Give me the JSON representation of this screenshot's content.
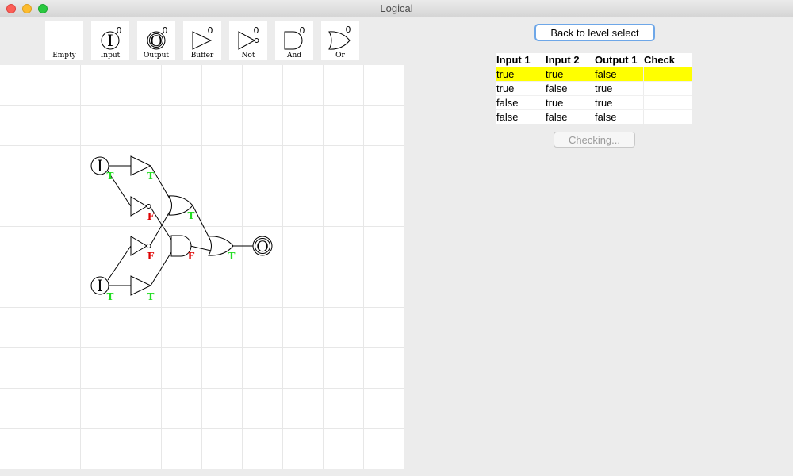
{
  "window": {
    "title": "Logical"
  },
  "palette": {
    "items": [
      {
        "name": "empty",
        "label": "Empty",
        "count": ""
      },
      {
        "name": "input",
        "label": "Input",
        "count": "0"
      },
      {
        "name": "output",
        "label": "Output",
        "count": "0"
      },
      {
        "name": "buffer",
        "label": "Buffer",
        "count": "0"
      },
      {
        "name": "not",
        "label": "Not",
        "count": "0"
      },
      {
        "name": "and",
        "label": "And",
        "count": "0"
      },
      {
        "name": "or",
        "label": "Or",
        "count": "0"
      }
    ]
  },
  "circuit": {
    "input_symbol": "I",
    "output_symbol": "O",
    "signals": {
      "input1": "T",
      "buf1": "T",
      "not1": "F",
      "or1": "T",
      "not2": "F",
      "and1": "F",
      "or2": "T",
      "input2": "T",
      "buf2": "T"
    },
    "colors": {
      "true": "#22dd22",
      "false": "#dd0000"
    }
  },
  "sidebar": {
    "back_button": "Back to level select",
    "check_button": "Checking...",
    "truth_table": {
      "headers": [
        "Input 1",
        "Input 2",
        "Output 1",
        "Check"
      ],
      "rows": [
        [
          "true",
          "true",
          "false",
          ""
        ],
        [
          "true",
          "false",
          "true",
          ""
        ],
        [
          "false",
          "true",
          "true",
          ""
        ],
        [
          "false",
          "false",
          "false",
          ""
        ]
      ],
      "highlight_color": "#ffff00"
    }
  }
}
